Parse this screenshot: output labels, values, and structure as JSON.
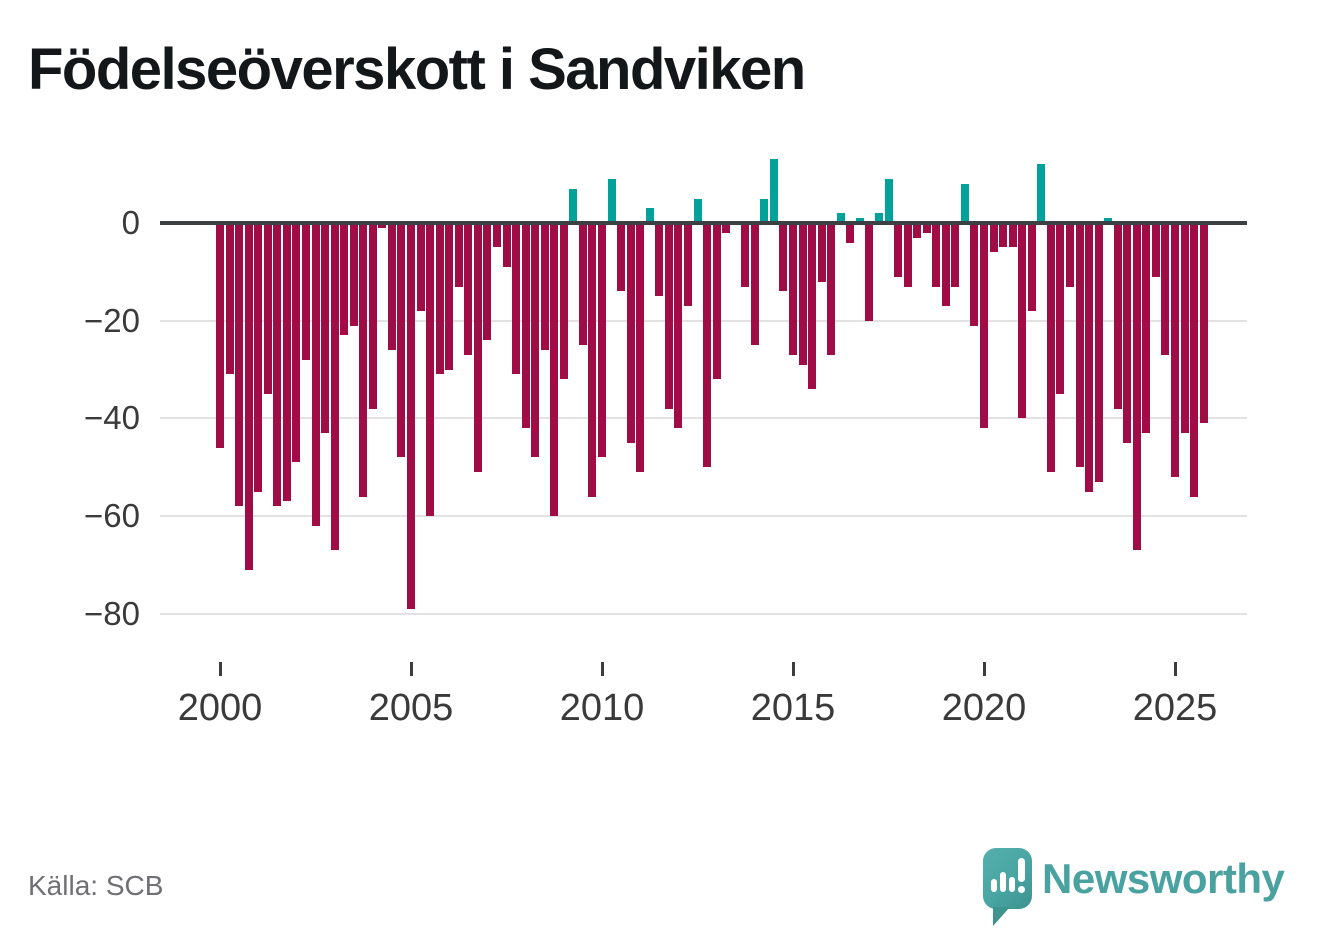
{
  "title": "Födelseöverskott i Sandviken",
  "source_note": "Källa: SCB",
  "branding": {
    "name": "Newsworthy",
    "logo_icon": "speech-bubble-bar-chart-exclamation-icon"
  },
  "colors": {
    "negative_bar": "#a00c46",
    "positive_bar": "#00a29a",
    "zero_axis": "#3d4042",
    "gridline": "#e2e2e2",
    "tick_text": "#3a3a3a",
    "title_text": "#14171a",
    "source_text": "#6f6f74",
    "brand_teal": "#4aa2a0"
  },
  "chart_data": {
    "type": "bar",
    "title": "Födelseöverskott i Sandviken",
    "frequency": "quarterly",
    "start": "2000 Q1",
    "end": "2025 Q4",
    "grid": "horizontal",
    "legend": "none",
    "y_axis": {
      "ticks": [
        0,
        -20,
        -40,
        -60,
        -80
      ],
      "tick_labels": [
        "0",
        "−20",
        "−40",
        "−60",
        "−80"
      ],
      "range": [
        -84,
        16
      ]
    },
    "x_axis": {
      "ticks": [
        2000,
        2005,
        2010,
        2015,
        2020,
        2025
      ],
      "tick_labels": [
        "2000",
        "2005",
        "2010",
        "2015",
        "2020",
        "2025"
      ]
    },
    "years": [
      {
        "year": 2000,
        "q": [
          -46,
          -31,
          -58,
          -71
        ]
      },
      {
        "year": 2001,
        "q": [
          -55,
          -35,
          -58,
          -57
        ]
      },
      {
        "year": 2002,
        "q": [
          -49,
          -28,
          -62,
          -43
        ]
      },
      {
        "year": 2003,
        "q": [
          -67,
          -23,
          -21,
          -56
        ]
      },
      {
        "year": 2004,
        "q": [
          -38,
          -1,
          -26,
          -48
        ]
      },
      {
        "year": 2005,
        "q": [
          -79,
          -18,
          -60,
          -31
        ]
      },
      {
        "year": 2006,
        "q": [
          -30,
          -13,
          -27,
          -51
        ]
      },
      {
        "year": 2007,
        "q": [
          -24,
          -5,
          -9,
          -31
        ]
      },
      {
        "year": 2008,
        "q": [
          -42,
          -48,
          -26,
          -60
        ]
      },
      {
        "year": 2009,
        "q": [
          -32,
          7,
          -25,
          -56
        ]
      },
      {
        "year": 2010,
        "q": [
          -48,
          9,
          -14,
          -45
        ]
      },
      {
        "year": 2011,
        "q": [
          -51,
          3,
          -15,
          -38
        ]
      },
      {
        "year": 2012,
        "q": [
          -42,
          -17,
          5,
          -50
        ]
      },
      {
        "year": 2013,
        "q": [
          -32,
          -2,
          0,
          -13
        ]
      },
      {
        "year": 2014,
        "q": [
          -25,
          5,
          13,
          -14
        ]
      },
      {
        "year": 2015,
        "q": [
          -27,
          -29,
          -34,
          -12
        ]
      },
      {
        "year": 2016,
        "q": [
          -27,
          2,
          -4,
          1
        ]
      },
      {
        "year": 2017,
        "q": [
          -20,
          2,
          9,
          -11
        ]
      },
      {
        "year": 2018,
        "q": [
          -13,
          -3,
          -2,
          -13
        ]
      },
      {
        "year": 2019,
        "q": [
          -17,
          -13,
          8,
          -21
        ]
      },
      {
        "year": 2020,
        "q": [
          -42,
          -6,
          -5,
          -5
        ]
      },
      {
        "year": 2021,
        "q": [
          -40,
          -18,
          12,
          -51
        ]
      },
      {
        "year": 2022,
        "q": [
          -35,
          -13,
          -50,
          -55
        ]
      },
      {
        "year": 2023,
        "q": [
          -53,
          1,
          -38,
          -45
        ]
      },
      {
        "year": 2024,
        "q": [
          -67,
          -43,
          -11,
          -27
        ]
      },
      {
        "year": 2025,
        "q": [
          -52,
          -43,
          -56,
          -41
        ]
      }
    ]
  }
}
